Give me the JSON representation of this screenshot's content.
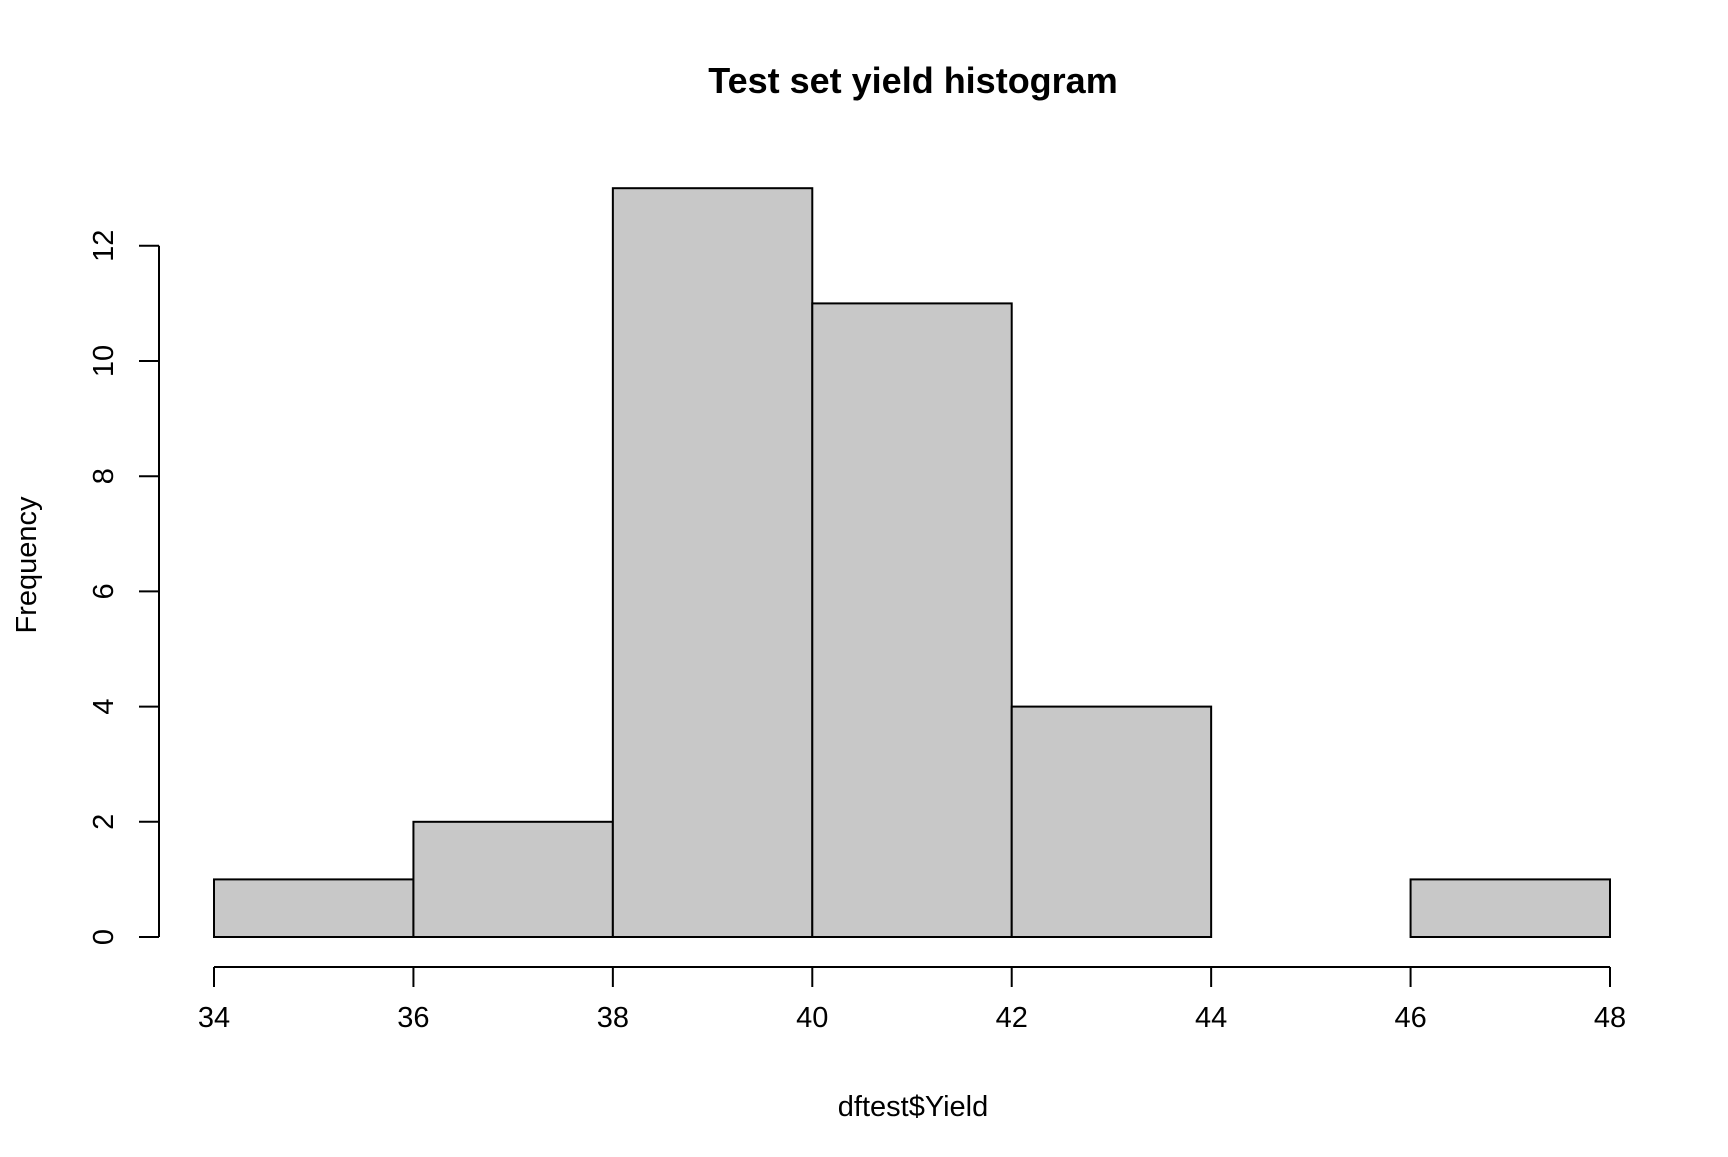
{
  "chart_data": {
    "type": "bar",
    "title": "Test set yield histogram",
    "xlabel": "dftest$Yield",
    "ylabel": "Frequency",
    "bins": [
      {
        "from": 34,
        "to": 36,
        "count": 1
      },
      {
        "from": 36,
        "to": 38,
        "count": 2
      },
      {
        "from": 38,
        "to": 40,
        "count": 13
      },
      {
        "from": 40,
        "to": 42,
        "count": 11
      },
      {
        "from": 42,
        "to": 44,
        "count": 4
      },
      {
        "from": 44,
        "to": 46,
        "count": 0
      },
      {
        "from": 46,
        "to": 48,
        "count": 1
      }
    ],
    "xlim": [
      34,
      48
    ],
    "ylim": [
      0,
      13
    ],
    "x_ticks": [
      34,
      36,
      38,
      40,
      42,
      44,
      46,
      48
    ],
    "y_ticks": [
      0,
      2,
      4,
      6,
      8,
      10,
      12
    ],
    "grid": false,
    "bar_color": "#c8c8c8",
    "bar_border_color": "#000000"
  }
}
